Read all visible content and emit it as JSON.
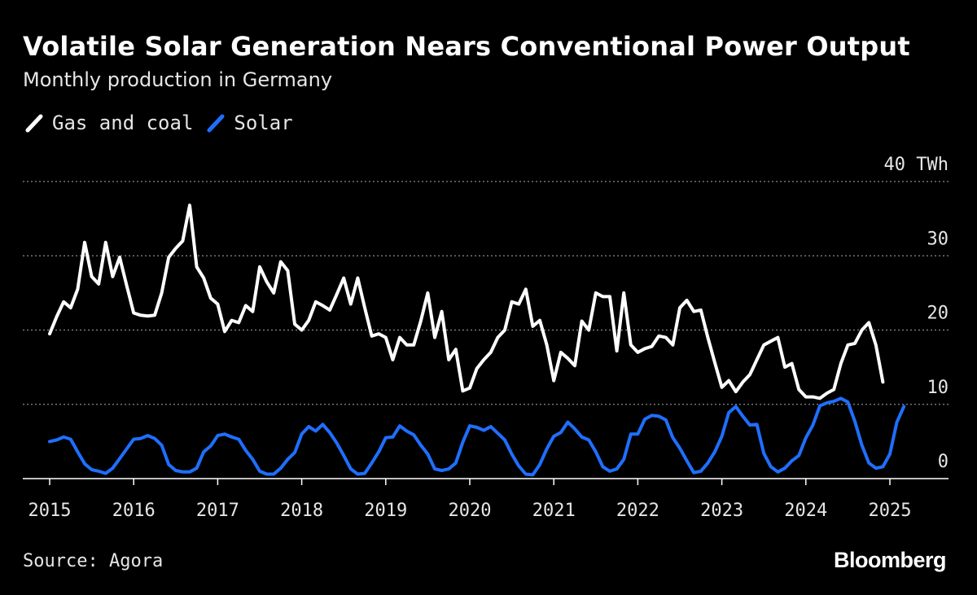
{
  "title": "Volatile Solar Generation Nears Conventional Power Output",
  "subtitle": "Monthly production in Germany",
  "legend": [
    {
      "label": "Gas and coal",
      "color": "#ffffff"
    },
    {
      "label": "Solar",
      "color": "#1f6fff"
    }
  ],
  "source": "Source: Agora",
  "brand": "Bloomberg",
  "chart_data": {
    "type": "line",
    "title": "Volatile Solar Generation Nears Conventional Power Output",
    "subtitle": "Monthly production in Germany",
    "xlabel": "",
    "ylabel": "",
    "unit": "TWh",
    "ylim": [
      0,
      40
    ],
    "yticks": [
      0,
      10,
      20,
      30,
      40
    ],
    "ytick_labels": [
      "0",
      "10",
      "20",
      "30",
      "40 TWh"
    ],
    "xticks": [
      2015,
      2016,
      2017,
      2018,
      2019,
      2020,
      2021,
      2022,
      2023,
      2024,
      2025
    ],
    "xtick_labels": [
      "2015",
      "2016",
      "2017",
      "2018",
      "2019",
      "2020",
      "2021",
      "2022",
      "2023",
      "2024",
      "2025"
    ],
    "grid": true,
    "legend_position": "top-left",
    "x_start": "2015-01",
    "x_end": "2025-04",
    "x_frequency": "monthly",
    "series": [
      {
        "name": "Gas and coal",
        "color": "#ffffff",
        "values": [
          19.5,
          21.8,
          23.8,
          23.0,
          25.5,
          31.8,
          27.2,
          26.2,
          31.8,
          27.2,
          29.8,
          26.0,
          22.3,
          22.0,
          21.9,
          22.0,
          25.0,
          29.8,
          31.0,
          32.0,
          36.8,
          28.5,
          27.0,
          24.3,
          23.5,
          19.8,
          21.3,
          21.0,
          23.3,
          22.5,
          28.5,
          26.5,
          25.0,
          29.2,
          28.0,
          20.8,
          20.0,
          21.3,
          23.8,
          23.3,
          22.7,
          24.8,
          27.0,
          23.5,
          27.0,
          23.0,
          19.2,
          19.5,
          19.0,
          16.0,
          19.0,
          18.0,
          18.0,
          21.2,
          25.0,
          19.0,
          22.5,
          16.0,
          17.4,
          11.8,
          12.2,
          14.8,
          16.0,
          17.0,
          19.0,
          20.0,
          23.8,
          23.5,
          25.5,
          20.5,
          21.3,
          18.0,
          13.2,
          17.0,
          16.2,
          15.2,
          21.2,
          20.0,
          25.0,
          24.5,
          24.5,
          17.2,
          25.0,
          18.0,
          17.0,
          17.5,
          17.8,
          19.2,
          19.0,
          18.0,
          23.0,
          24.0,
          22.5,
          22.7,
          19.0,
          15.6,
          12.3,
          13.2,
          11.7,
          13.0,
          14.0,
          16.0,
          18.0,
          18.5,
          19.0,
          15.0,
          15.5,
          12.0,
          11.0,
          11.0,
          10.8,
          11.5,
          12.0,
          15.5,
          18.0,
          18.2,
          20.0,
          21.0,
          18.0,
          13.0
        ]
      },
      {
        "name": "Solar",
        "color": "#1f6fff",
        "values": [
          5.0,
          5.2,
          5.6,
          5.3,
          3.6,
          2.0,
          1.2,
          1.0,
          0.7,
          1.4,
          2.7,
          4.0,
          5.3,
          5.4,
          5.8,
          5.4,
          4.5,
          1.9,
          1.1,
          0.9,
          0.9,
          1.4,
          3.6,
          4.4,
          5.8,
          6.0,
          5.6,
          5.3,
          3.8,
          2.6,
          1.0,
          0.6,
          0.6,
          1.4,
          2.6,
          3.5,
          6.0,
          7.0,
          6.4,
          7.3,
          6.2,
          4.8,
          3.1,
          1.3,
          0.6,
          0.7,
          2.1,
          3.6,
          5.5,
          5.6,
          7.1,
          6.4,
          5.9,
          4.5,
          3.3,
          1.3,
          1.1,
          1.3,
          2.1,
          4.9,
          7.1,
          6.9,
          6.5,
          7.0,
          6.1,
          5.2,
          3.3,
          1.7,
          0.6,
          0.5,
          1.9,
          4.0,
          5.7,
          6.2,
          7.6,
          6.7,
          5.6,
          5.2,
          3.6,
          1.6,
          1.0,
          1.3,
          2.6,
          6.0,
          6.0,
          8.0,
          8.5,
          8.4,
          7.9,
          5.5,
          4.1,
          2.4,
          0.8,
          1.0,
          2.1,
          3.6,
          5.7,
          8.9,
          9.7,
          8.4,
          7.2,
          7.3,
          3.4,
          1.6,
          0.9,
          1.4,
          2.4,
          3.1,
          5.5,
          7.2,
          9.8,
          10.2,
          10.4,
          10.8,
          10.3,
          7.7,
          4.5,
          2.1,
          1.4,
          1.6,
          3.3,
          7.6,
          9.7
        ]
      }
    ]
  }
}
